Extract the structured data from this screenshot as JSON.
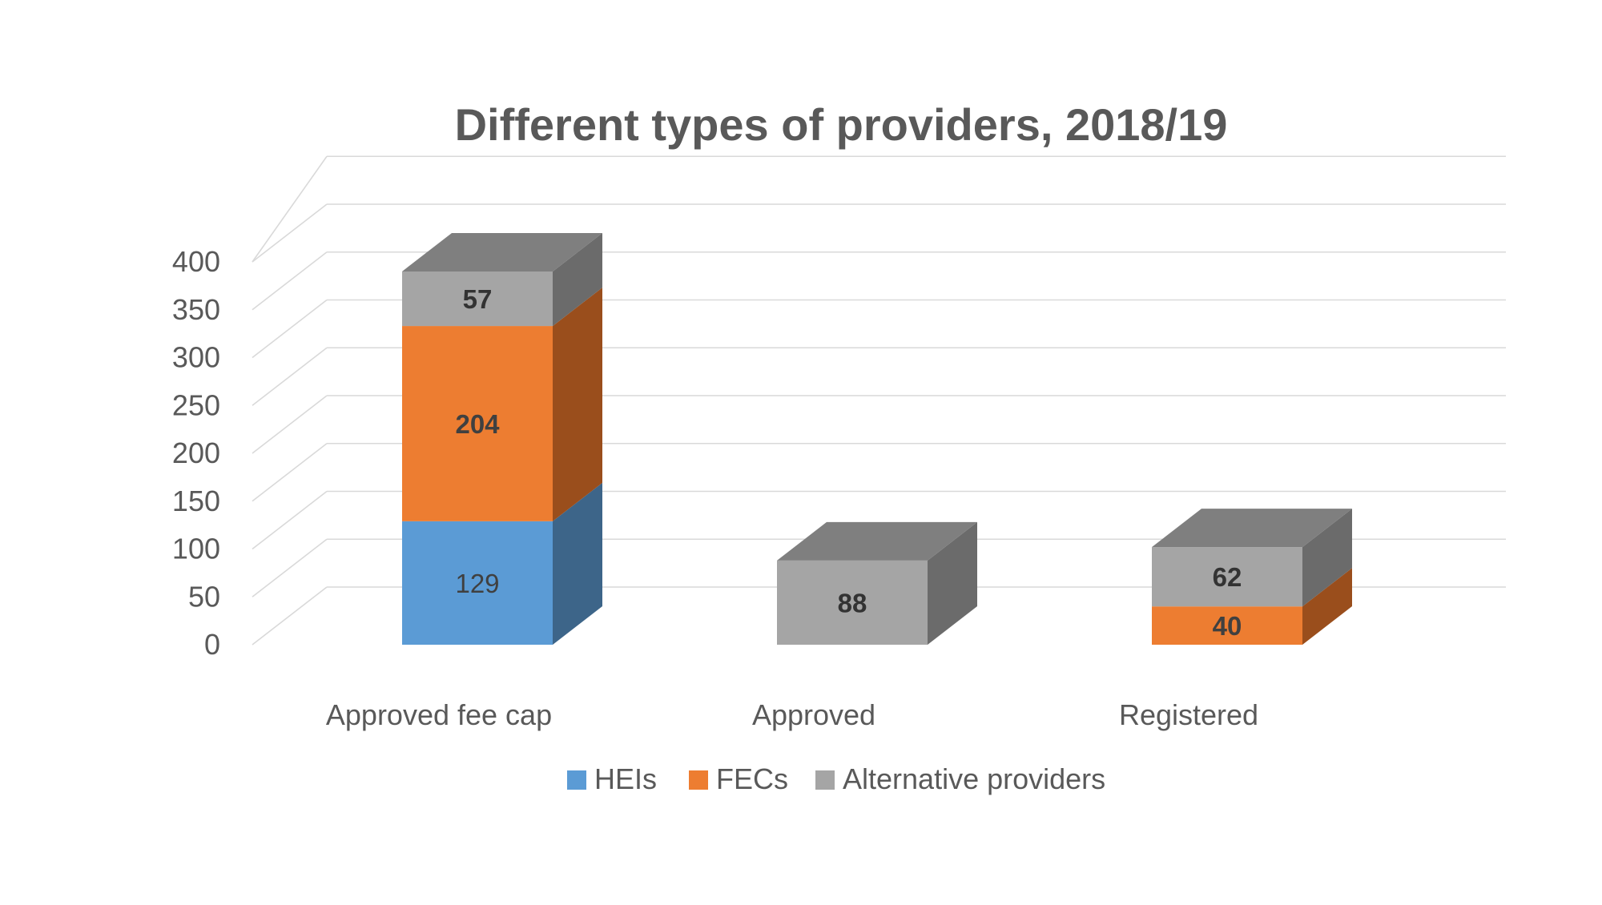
{
  "chart_data": {
    "type": "bar",
    "stacked": true,
    "three_d": true,
    "title": "Different types of providers, 2018/19",
    "xlabel": "",
    "ylabel": "",
    "categories": [
      "Approved fee cap",
      "Approved",
      "Registered"
    ],
    "ylim": [
      0,
      400
    ],
    "yticks": [
      0,
      50,
      100,
      150,
      200,
      250,
      300,
      350,
      400
    ],
    "grid": true,
    "legend_position": "bottom",
    "series": [
      {
        "name": "HEIs",
        "values": [
          129,
          null,
          null
        ],
        "color": "#5b9bd5",
        "side_color": "#3d6589",
        "top_color": "#4a80b0",
        "label_color": "#404040",
        "label_weight": "normal"
      },
      {
        "name": "FECs",
        "values": [
          204,
          null,
          40
        ],
        "color": "#ed7d31",
        "side_color": "#9a4e1c",
        "top_color": "#c4651f",
        "label_color": "#404040",
        "label_weight": "bold"
      },
      {
        "name": "Alternative providers",
        "values": [
          57,
          88,
          62
        ],
        "color": "#a5a5a5",
        "side_color": "#6b6b6b",
        "top_color": "#7f7f7f",
        "label_color": "#333333",
        "label_weight": "bold"
      }
    ],
    "colors": {
      "title": "#595959",
      "axis_text": "#595959",
      "grid": "#d9d9d9"
    }
  }
}
